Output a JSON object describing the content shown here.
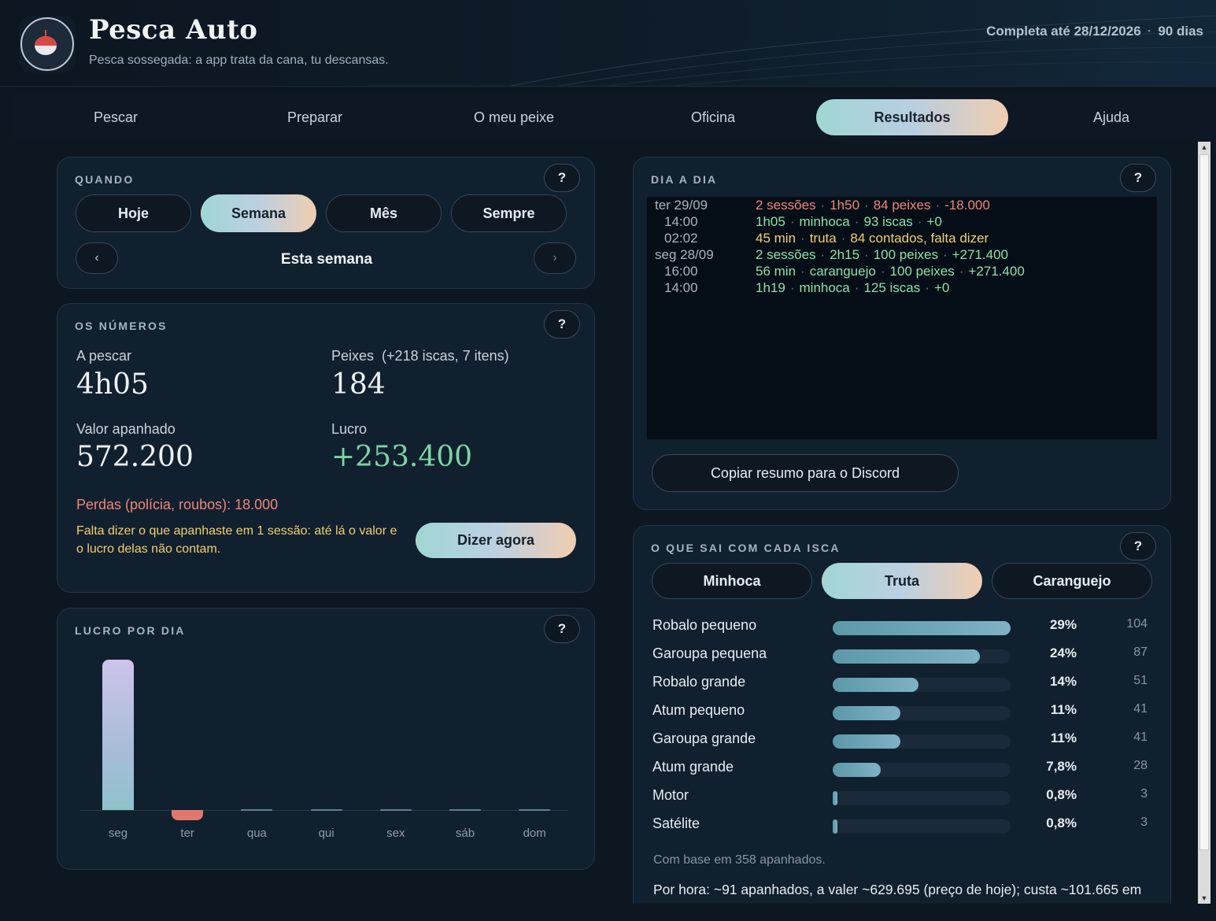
{
  "app": {
    "title": "Pesca Auto",
    "subtitle": "Pesca sossegada: a app trata da cana, tu descansas.",
    "license_text": "Completa até 28/12/2026",
    "license_days": "90 dias"
  },
  "nav": {
    "tabs": [
      {
        "label": "Pescar",
        "active": false
      },
      {
        "label": "Preparar",
        "active": false
      },
      {
        "label": "O meu peixe",
        "active": false
      },
      {
        "label": "Oficina",
        "active": false
      },
      {
        "label": "Resultados",
        "active": true
      },
      {
        "label": "Ajuda",
        "active": false
      }
    ]
  },
  "quando": {
    "title": "QUANDO",
    "help": "?",
    "options": [
      "Hoje",
      "Semana",
      "Mês",
      "Sempre"
    ],
    "selected": "Semana",
    "prev_icon": "‹",
    "next_icon": "›",
    "period_label": "Esta semana"
  },
  "numeros": {
    "title": "OS NÚMEROS",
    "help": "?",
    "fishing_label": "A pescar",
    "fishing_value": "4h05",
    "fish_label": "Peixes",
    "fish_extra": "(+218 iscas, 7 itens)",
    "fish_value": "184",
    "caught_label": "Valor apanhado",
    "caught_value": "572.200",
    "profit_label": "Lucro",
    "profit_value": "+253.400",
    "losses": "Perdas (polícia, roubos): 18.000",
    "pending_note": "Falta dizer o que apanhaste em 1 sessão: até lá o valor e o lucro delas não contam.",
    "pending_button": "Dizer agora",
    "accent_profit": "#7dd4a6",
    "accent_losses": "#f0857a",
    "accent_pending": "#f2cf6e"
  },
  "lucro_dia": {
    "title": "LUCRO POR DIA",
    "help": "?"
  },
  "chart_data": {
    "type": "bar",
    "categories": [
      "seg",
      "ter",
      "qua",
      "qui",
      "sex",
      "sáb",
      "dom"
    ],
    "values": [
      271400,
      -18000,
      0,
      0,
      0,
      0,
      0
    ],
    "title": "LUCRO POR DIA",
    "xlabel": "",
    "ylabel": "",
    "ylim": [
      -18000,
      271400
    ],
    "positive_color": "#c9c4e8",
    "negative_color": "#e0786e",
    "grid": false,
    "legend": "none"
  },
  "dia_a_dia": {
    "title": "DIA A DIA",
    "help": "?",
    "rows": [
      {
        "label": "ter 29/09",
        "indent": false,
        "color": "red",
        "parts": [
          "2 sessões",
          "1h50",
          "84 peixes",
          "-18.000"
        ]
      },
      {
        "label": "14:00",
        "indent": true,
        "color": "green",
        "parts": [
          "1h05",
          "minhoca",
          "93 iscas",
          "+0"
        ]
      },
      {
        "label": "02:02",
        "indent": true,
        "color": "yellow",
        "parts": [
          "45 min",
          "truta",
          "84 contados, falta dizer"
        ]
      },
      {
        "label": "seg 28/09",
        "indent": false,
        "color": "green",
        "parts": [
          "2 sessões",
          "2h15",
          "100 peixes",
          "+271.400"
        ]
      },
      {
        "label": "16:00",
        "indent": true,
        "color": "green",
        "parts": [
          "56 min",
          "caranguejo",
          "100 peixes",
          "+271.400"
        ]
      },
      {
        "label": "14:00",
        "indent": true,
        "color": "green",
        "parts": [
          "1h19",
          "minhoca",
          "125 iscas",
          "+0"
        ]
      }
    ],
    "copy_button": "Copiar resumo para o Discord"
  },
  "isca": {
    "title": "O QUE SAI COM CADA ISCA",
    "help": "?",
    "baits": [
      "Minhoca",
      "Truta",
      "Caranguejo"
    ],
    "selected": "Truta",
    "items": [
      {
        "name": "Robalo pequeno",
        "pct": "29%",
        "count": "104",
        "share": 0.29
      },
      {
        "name": "Garoupa pequena",
        "pct": "24%",
        "count": "87",
        "share": 0.24
      },
      {
        "name": "Robalo grande",
        "pct": "14%",
        "count": "51",
        "share": 0.14
      },
      {
        "name": "Atum pequeno",
        "pct": "11%",
        "count": "41",
        "share": 0.11
      },
      {
        "name": "Garoupa grande",
        "pct": "11%",
        "count": "41",
        "share": 0.11
      },
      {
        "name": "Atum grande",
        "pct": "7,8%",
        "count": "28",
        "share": 0.078
      },
      {
        "name": "Motor",
        "pct": "0,8%",
        "count": "3",
        "share": 0.008
      },
      {
        "name": "Satélite",
        "pct": "0,8%",
        "count": "3",
        "share": 0.008
      }
    ],
    "base_note": "Com base em 358 apanhados.",
    "per_hour": "Por hora: ~91 apanhados, a valer ~629.695 (preço de hoje); custa ~101.665 em"
  }
}
